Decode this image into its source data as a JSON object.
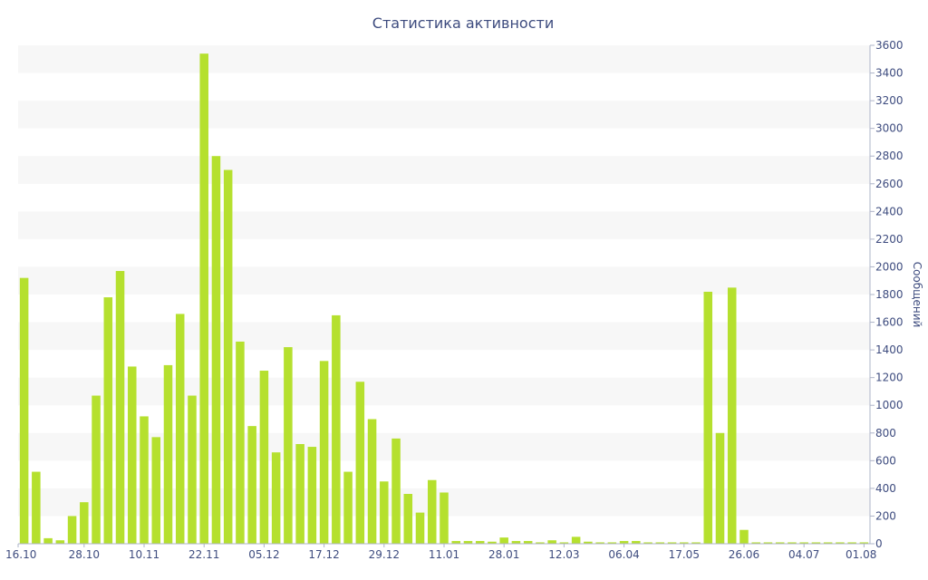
{
  "chart_data": {
    "type": "bar",
    "title": "Статистика активности",
    "ylabel": "Сообщений",
    "xlabel": "",
    "ylim": [
      0,
      3600
    ],
    "y_ticks": [
      0,
      200,
      400,
      600,
      800,
      1000,
      1200,
      1400,
      1600,
      1800,
      2000,
      2200,
      2400,
      2600,
      2800,
      3000,
      3200,
      3400,
      3600
    ],
    "y_axis_side": "right",
    "grid": "alternating horizontal bands",
    "bar_color": "#b5e02e",
    "band_color": "#f7f7f7",
    "text_color": "#3e4c7f",
    "x_tick_labels": [
      {
        "index": 0,
        "label": "16.10"
      },
      {
        "index": 5,
        "label": "28.10"
      },
      {
        "index": 10,
        "label": "10.11"
      },
      {
        "index": 15,
        "label": "22.11"
      },
      {
        "index": 20,
        "label": "05.12"
      },
      {
        "index": 25,
        "label": "17.12"
      },
      {
        "index": 30,
        "label": "29.12"
      },
      {
        "index": 35,
        "label": "11.01"
      },
      {
        "index": 40,
        "label": "28.01"
      },
      {
        "index": 45,
        "label": "12.03"
      },
      {
        "index": 50,
        "label": "06.04"
      },
      {
        "index": 55,
        "label": "17.05"
      },
      {
        "index": 60,
        "label": "26.06"
      },
      {
        "index": 65,
        "label": "04.07"
      },
      {
        "index": 70,
        "label": "01.08"
      }
    ],
    "values": [
      1920,
      520,
      40,
      25,
      200,
      300,
      1070,
      1780,
      1970,
      1280,
      920,
      770,
      1290,
      1660,
      1070,
      3540,
      2800,
      2700,
      1460,
      850,
      1250,
      660,
      1420,
      720,
      700,
      1320,
      1650,
      520,
      1170,
      900,
      450,
      760,
      360,
      225,
      460,
      370,
      20,
      20,
      20,
      15,
      45,
      20,
      20,
      10,
      25,
      10,
      50,
      15,
      10,
      10,
      20,
      20,
      10,
      10,
      10,
      10,
      10,
      1820,
      800,
      1850,
      100,
      10,
      10,
      10,
      10,
      10,
      10,
      10,
      10,
      10,
      10
    ]
  }
}
